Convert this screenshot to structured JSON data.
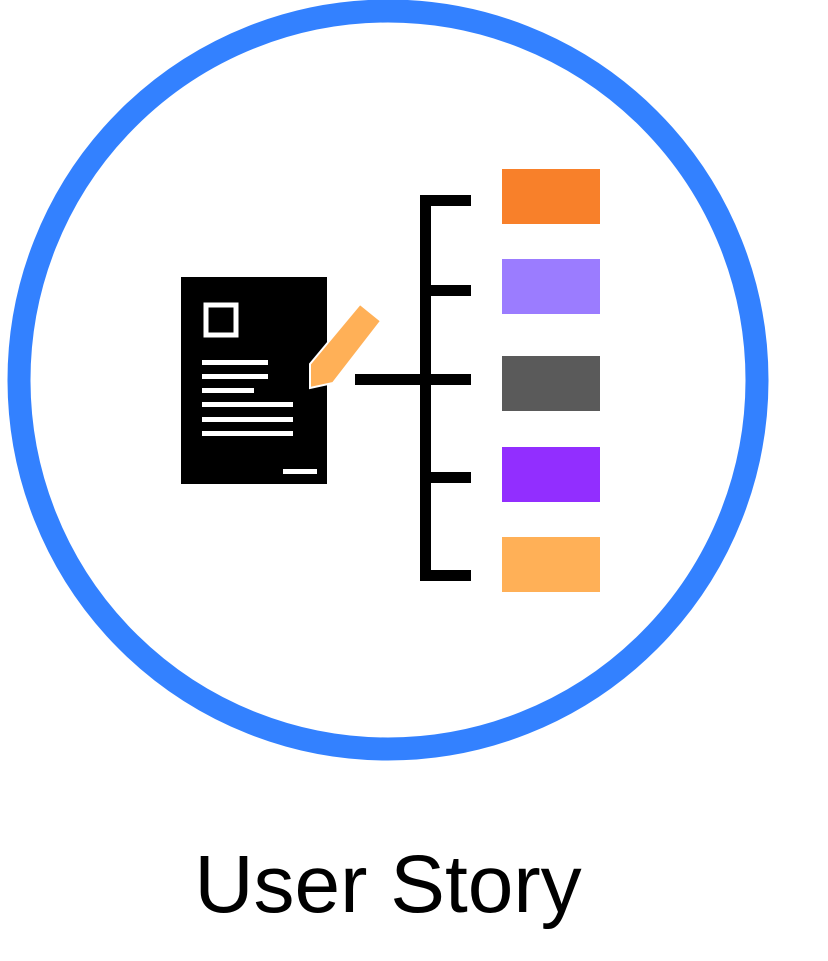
{
  "label": "User Story",
  "colors": {
    "ring": "#3381FF",
    "pencil": "#FFB057",
    "boxes": [
      "#F8802A",
      "#9B7CFF",
      "#5A5A5A",
      "#922EFF",
      "#FFB057"
    ]
  },
  "icons": [
    "document-icon",
    "pencil-icon",
    "bracket-icon"
  ]
}
